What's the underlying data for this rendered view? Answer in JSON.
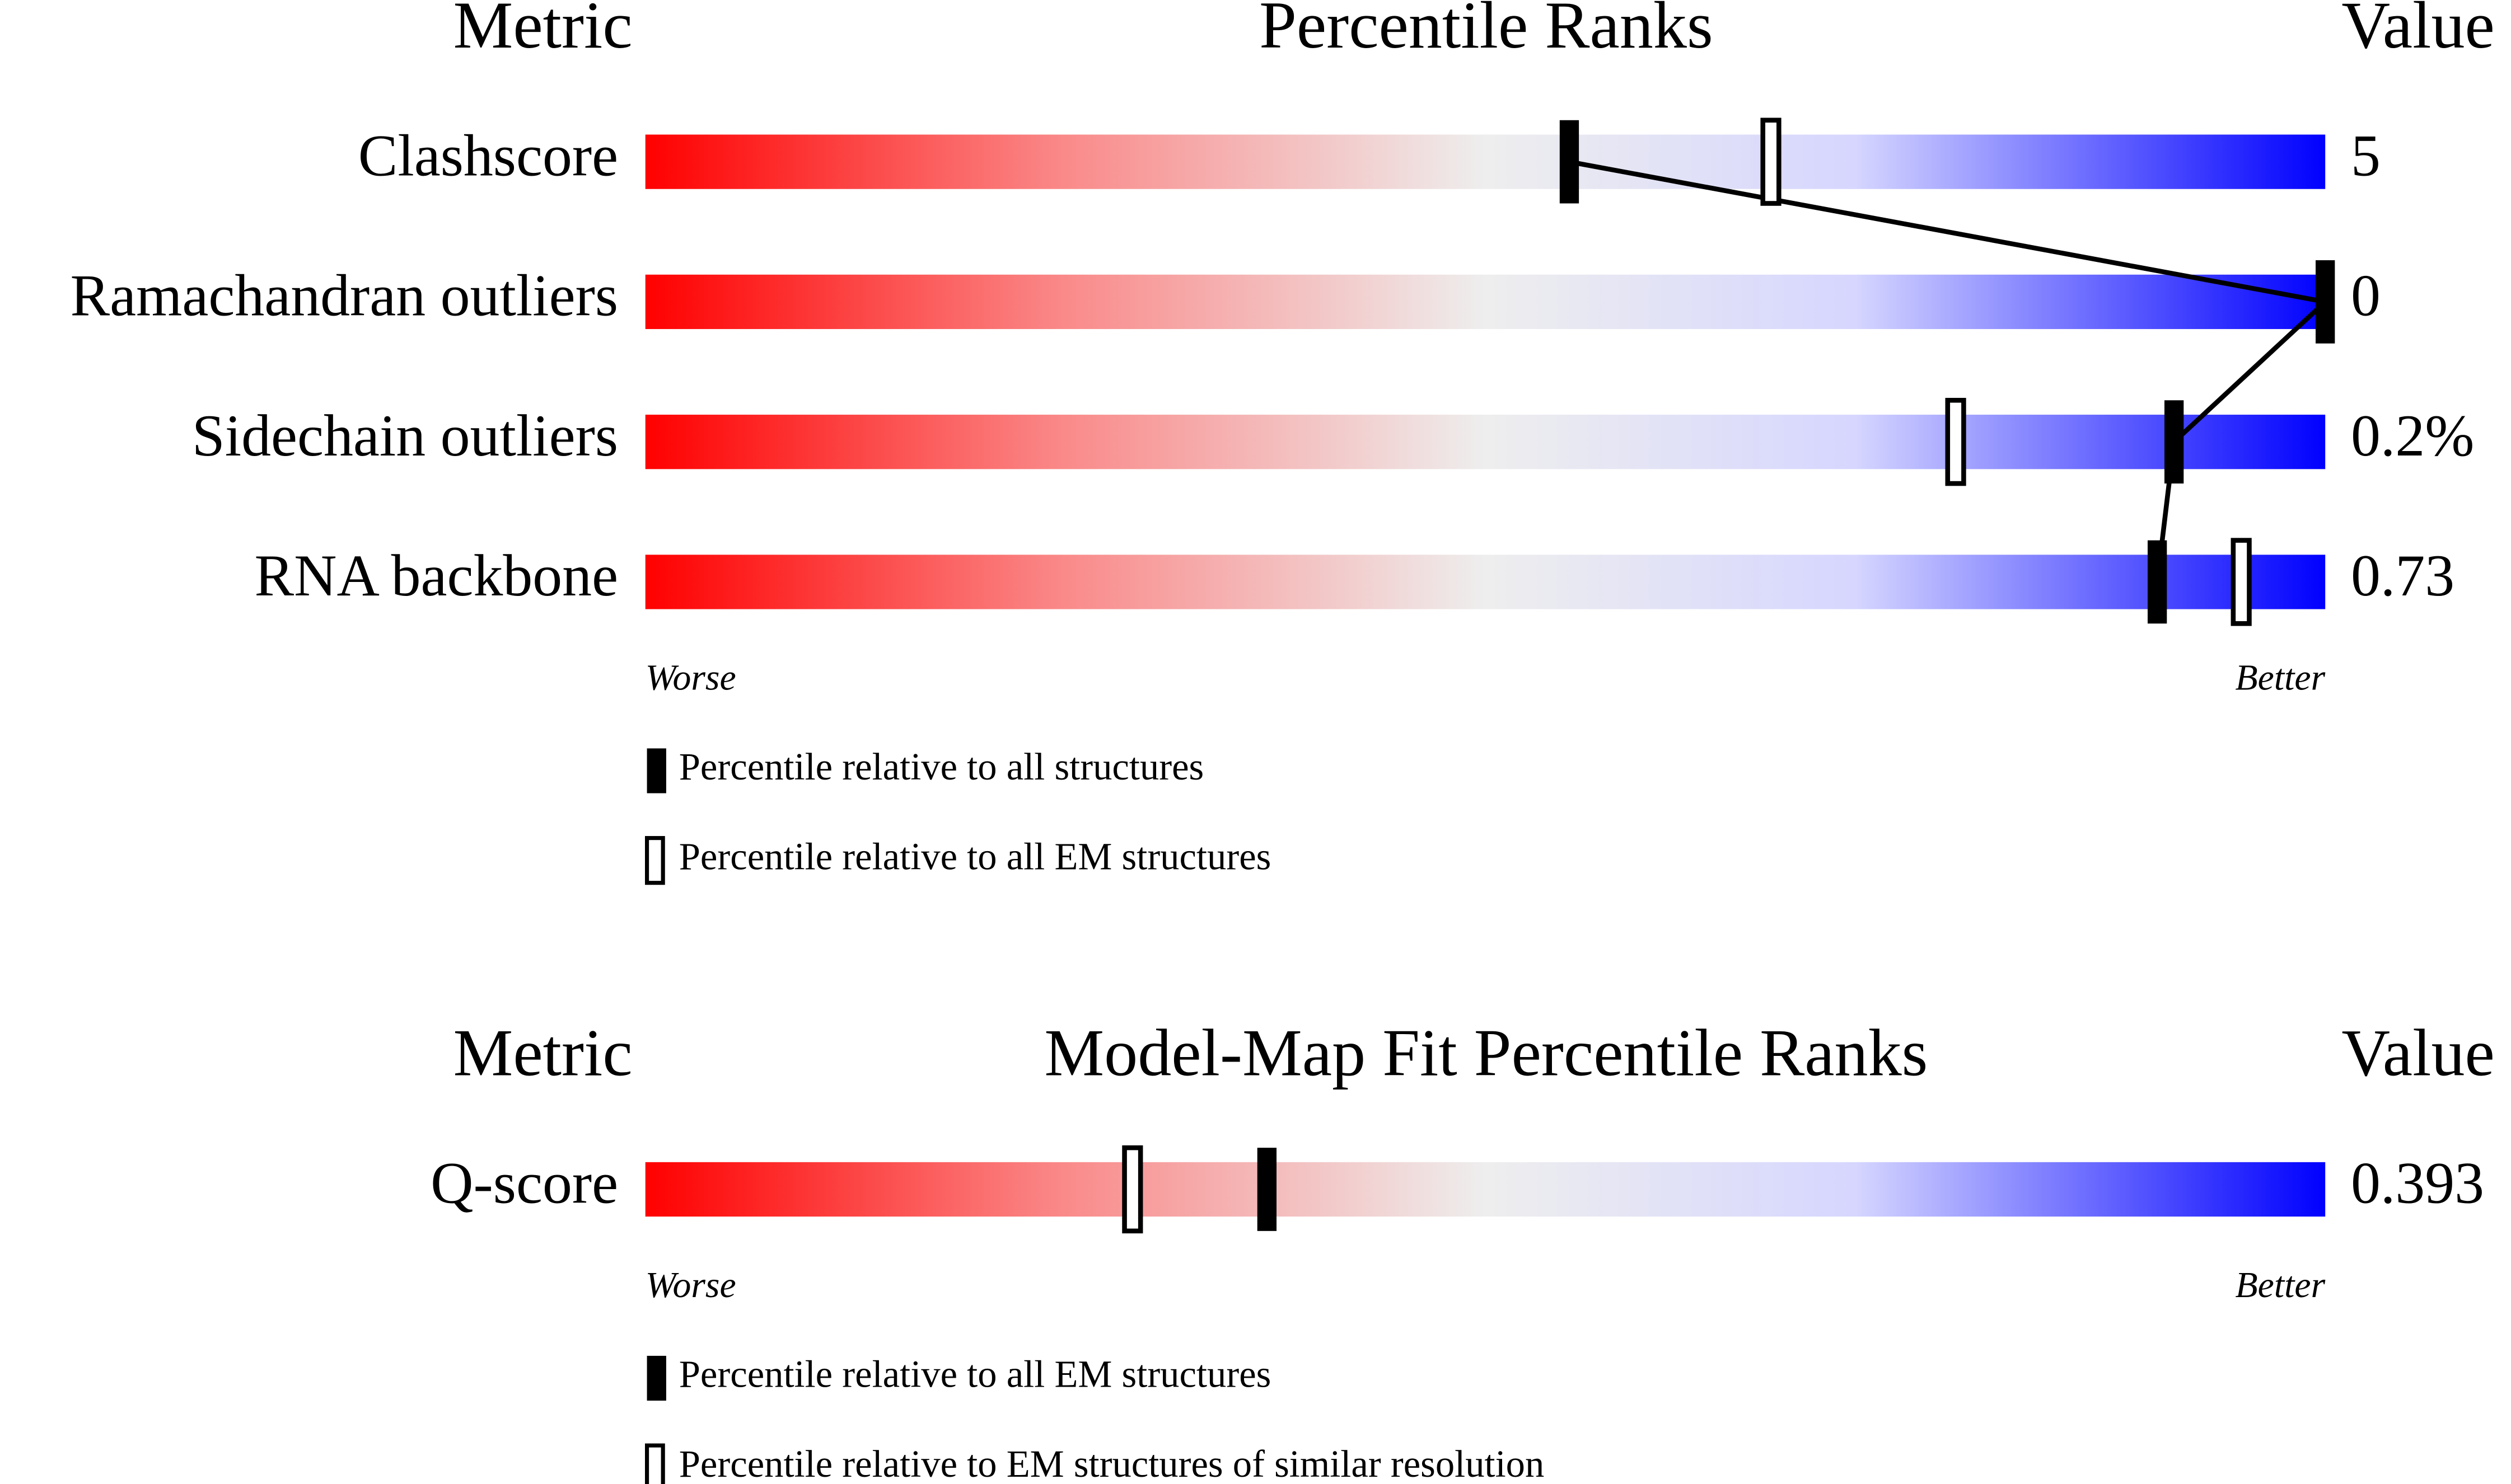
{
  "chart_data": [
    {
      "type": "percentile-slider",
      "title": "Percentile Ranks",
      "metric_header": "Metric",
      "value_header": "Value",
      "categories": [
        "Clashscore",
        "Ramachandran outliers",
        "Sidechain outliers",
        "RNA backbone"
      ],
      "metric_values": [
        "5",
        "0",
        "0.2%",
        "0.73"
      ],
      "xlim": [
        0,
        100
      ],
      "worse_label": "Worse",
      "better_label": "Better",
      "series": [
        {
          "name": "Percentile relative to all structures",
          "color": "#000000",
          "filled": true,
          "values": [
            55,
            100,
            91,
            90
          ]
        },
        {
          "name": "Percentile relative to all EM structures",
          "color": "#000000",
          "filled": false,
          "values": [
            67,
            null,
            78,
            95
          ]
        }
      ]
    },
    {
      "type": "percentile-slider",
      "title": "Model-Map Fit Percentile Ranks",
      "metric_header": "Metric",
      "value_header": "Value",
      "categories": [
        "Q-score"
      ],
      "metric_values": [
        "0.393"
      ],
      "xlim": [
        0,
        100
      ],
      "worse_label": "Worse",
      "better_label": "Better",
      "series": [
        {
          "name": "Percentile relative to all EM structures",
          "color": "#000000",
          "filled": true,
          "values": [
            37
          ]
        },
        {
          "name": "Percentile relative to EM structures of similar resolution",
          "color": "#000000",
          "filled": false,
          "values": [
            29
          ]
        }
      ]
    }
  ]
}
